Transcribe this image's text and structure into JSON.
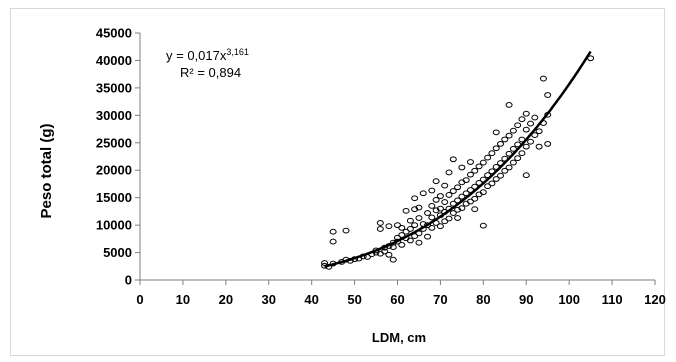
{
  "chart_data": {
    "type": "scatter",
    "title": "",
    "xlabel": "LDM, cm",
    "ylabel": "Peso total (g)",
    "xlim": [
      0,
      120
    ],
    "ylim": [
      0,
      45000
    ],
    "x_ticks": [
      "0",
      "10",
      "20",
      "30",
      "40",
      "50",
      "60",
      "70",
      "80",
      "90",
      "100",
      "110",
      "120"
    ],
    "y_ticks": [
      "0",
      "5000",
      "10000",
      "15000",
      "20000",
      "25000",
      "30000",
      "35000",
      "40000",
      "45000"
    ],
    "grid": false,
    "legend": "none",
    "marker": "open-circle",
    "trendline": {
      "type": "power",
      "a": 0.017,
      "b": 3.161,
      "x_range": [
        43,
        105
      ],
      "equation_prefix": "y = 0,017x",
      "equation_exponent": "3,161",
      "r2_label": "R² = 0,894"
    },
    "series": [
      {
        "points": [
          [
            43,
            2600
          ],
          [
            43,
            3100
          ],
          [
            44,
            2400
          ],
          [
            45,
            3000
          ],
          [
            45,
            7000
          ],
          [
            45,
            8800
          ],
          [
            47,
            3300
          ],
          [
            48,
            3700
          ],
          [
            48,
            9000
          ],
          [
            49,
            3500
          ],
          [
            50,
            3800
          ],
          [
            51,
            3900
          ],
          [
            52,
            4300
          ],
          [
            53,
            4200
          ],
          [
            54,
            4700
          ],
          [
            55,
            5000
          ],
          [
            55,
            5400
          ],
          [
            56,
            4800
          ],
          [
            56,
            9300
          ],
          [
            56,
            10400
          ],
          [
            57,
            5200
          ],
          [
            57,
            5900
          ],
          [
            58,
            4600
          ],
          [
            58,
            6200
          ],
          [
            58,
            9800
          ],
          [
            59,
            6000
          ],
          [
            59,
            6800
          ],
          [
            59,
            3700
          ],
          [
            60,
            7000
          ],
          [
            60,
            7700
          ],
          [
            60,
            10000
          ],
          [
            61,
            6400
          ],
          [
            61,
            8200
          ],
          [
            61,
            9500
          ],
          [
            62,
            7600
          ],
          [
            62,
            8800
          ],
          [
            62,
            12600
          ],
          [
            63,
            7200
          ],
          [
            63,
            9300
          ],
          [
            63,
            10800
          ],
          [
            64,
            8000
          ],
          [
            64,
            10000
          ],
          [
            64,
            12900
          ],
          [
            64,
            14900
          ],
          [
            65,
            8500
          ],
          [
            65,
            11300
          ],
          [
            65,
            13200
          ],
          [
            65,
            6800
          ],
          [
            66,
            9300
          ],
          [
            66,
            10200
          ],
          [
            66,
            15800
          ],
          [
            67,
            10000
          ],
          [
            67,
            12200
          ],
          [
            67,
            7900
          ],
          [
            68,
            9500
          ],
          [
            68,
            11400
          ],
          [
            68,
            13500
          ],
          [
            68,
            16300
          ],
          [
            69,
            10400
          ],
          [
            69,
            12700
          ],
          [
            69,
            14600
          ],
          [
            69,
            18000
          ],
          [
            70,
            9800
          ],
          [
            70,
            11800
          ],
          [
            70,
            13000
          ],
          [
            70,
            15300
          ],
          [
            71,
            10700
          ],
          [
            71,
            12400
          ],
          [
            71,
            14200
          ],
          [
            71,
            17200
          ],
          [
            72,
            11200
          ],
          [
            72,
            13000
          ],
          [
            72,
            15500
          ],
          [
            72,
            19600
          ],
          [
            73,
            12200
          ],
          [
            73,
            13900
          ],
          [
            73,
            16200
          ],
          [
            73,
            22000
          ],
          [
            74,
            12800
          ],
          [
            74,
            14500
          ],
          [
            74,
            16900
          ],
          [
            74,
            11300
          ],
          [
            75,
            13100
          ],
          [
            75,
            15200
          ],
          [
            75,
            17800
          ],
          [
            75,
            20500
          ],
          [
            76,
            13900
          ],
          [
            76,
            15800
          ],
          [
            76,
            18200
          ],
          [
            77,
            14300
          ],
          [
            77,
            16400
          ],
          [
            77,
            19200
          ],
          [
            77,
            21500
          ],
          [
            78,
            14800
          ],
          [
            78,
            17000
          ],
          [
            78,
            19900
          ],
          [
            78,
            12900
          ],
          [
            79,
            15600
          ],
          [
            79,
            17700
          ],
          [
            79,
            20700
          ],
          [
            80,
            16000
          ],
          [
            80,
            18300
          ],
          [
            80,
            21400
          ],
          [
            80,
            9900
          ],
          [
            81,
            17100
          ],
          [
            81,
            19100
          ],
          [
            81,
            22300
          ],
          [
            82,
            17600
          ],
          [
            82,
            19800
          ],
          [
            82,
            23100
          ],
          [
            83,
            18400
          ],
          [
            83,
            20600
          ],
          [
            83,
            24000
          ],
          [
            83,
            26900
          ],
          [
            84,
            19000
          ],
          [
            84,
            21300
          ],
          [
            84,
            24800
          ],
          [
            85,
            19900
          ],
          [
            85,
            22100
          ],
          [
            85,
            25600
          ],
          [
            86,
            20500
          ],
          [
            86,
            23000
          ],
          [
            86,
            26300
          ],
          [
            86,
            31900
          ],
          [
            87,
            21400
          ],
          [
            87,
            23900
          ],
          [
            87,
            27200
          ],
          [
            88,
            22200
          ],
          [
            88,
            24700
          ],
          [
            88,
            28200
          ],
          [
            89,
            23100
          ],
          [
            89,
            25600
          ],
          [
            89,
            29300
          ],
          [
            90,
            19100
          ],
          [
            90,
            24300
          ],
          [
            90,
            27400
          ],
          [
            90,
            30300
          ],
          [
            91,
            25200
          ],
          [
            91,
            28500
          ],
          [
            92,
            26400
          ],
          [
            92,
            29600
          ],
          [
            93,
            24300
          ],
          [
            93,
            27100
          ],
          [
            94,
            28600
          ],
          [
            94,
            36700
          ],
          [
            95,
            30100
          ],
          [
            95,
            33700
          ],
          [
            95,
            24800
          ],
          [
            105,
            40400
          ]
        ]
      }
    ]
  }
}
